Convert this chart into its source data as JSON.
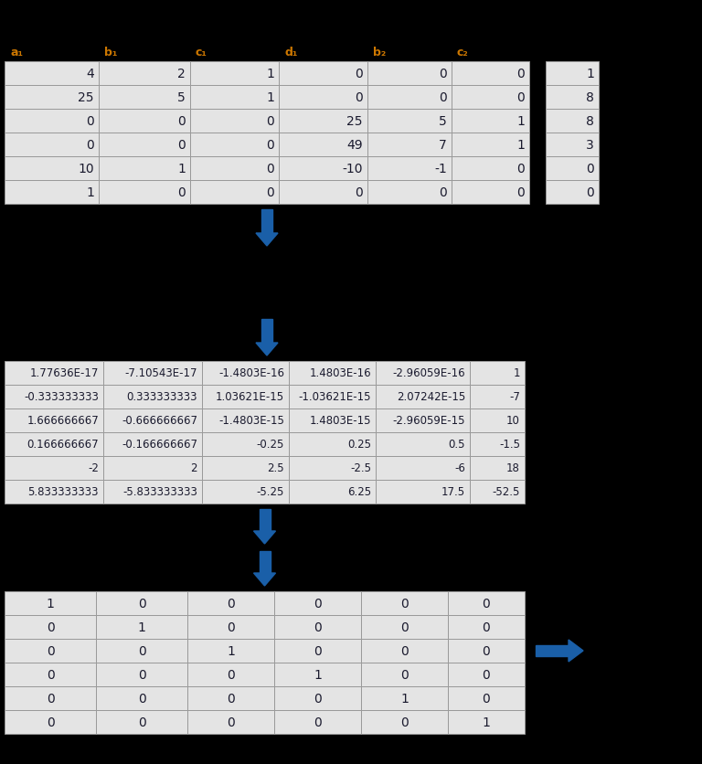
{
  "bg_color": "#000000",
  "table_bg": "#e4e4e4",
  "table_border": "#999999",
  "text_color": "#1a1a2e",
  "arrow_color": "#1a5fa8",
  "table1_headers": [
    "a₁",
    "b₁",
    "c₁",
    "d₁",
    "b₂",
    "c₂"
  ],
  "table1_data": [
    [
      "4",
      "2",
      "1",
      "0",
      "0",
      "0"
    ],
    [
      "25",
      "5",
      "1",
      "0",
      "0",
      "0"
    ],
    [
      "0",
      "0",
      "0",
      "25",
      "5",
      "1"
    ],
    [
      "0",
      "0",
      "0",
      "49",
      "7",
      "1"
    ],
    [
      "10",
      "1",
      "0",
      "-10",
      "-1",
      "0"
    ],
    [
      "1",
      "0",
      "0",
      "0",
      "0",
      "0"
    ]
  ],
  "table1_rhs": [
    "1",
    "8",
    "8",
    "3",
    "0",
    "0"
  ],
  "table2_data": [
    [
      "1.77636E-17",
      "-7.10543E-17",
      "-1.4803E-16",
      "1.4803E-16",
      "-2.96059E-16",
      "1"
    ],
    [
      "-0.333333333",
      "0.333333333",
      "1.03621E-15",
      "-1.03621E-15",
      "2.07242E-15",
      "-7"
    ],
    [
      "1.666666667",
      "-0.666666667",
      "-1.4803E-15",
      "1.4803E-15",
      "-2.96059E-15",
      "10"
    ],
    [
      "0.166666667",
      "-0.166666667",
      "-0.25",
      "0.25",
      "0.5",
      "-1.5"
    ],
    [
      "-2",
      "2",
      "2.5",
      "-2.5",
      "-6",
      "18"
    ],
    [
      "5.833333333",
      "-5.833333333",
      "-5.25",
      "6.25",
      "17.5",
      "-52.5"
    ]
  ],
  "table3_data": [
    [
      "1",
      "0",
      "0",
      "0",
      "0",
      "0"
    ],
    [
      "0",
      "1",
      "0",
      "0",
      "0",
      "0"
    ],
    [
      "0",
      "0",
      "1",
      "0",
      "0",
      "0"
    ],
    [
      "0",
      "0",
      "0",
      "1",
      "0",
      "0"
    ],
    [
      "0",
      "0",
      "0",
      "0",
      "1",
      "0"
    ],
    [
      "0",
      "0",
      "0",
      "0",
      "0",
      "1"
    ]
  ]
}
